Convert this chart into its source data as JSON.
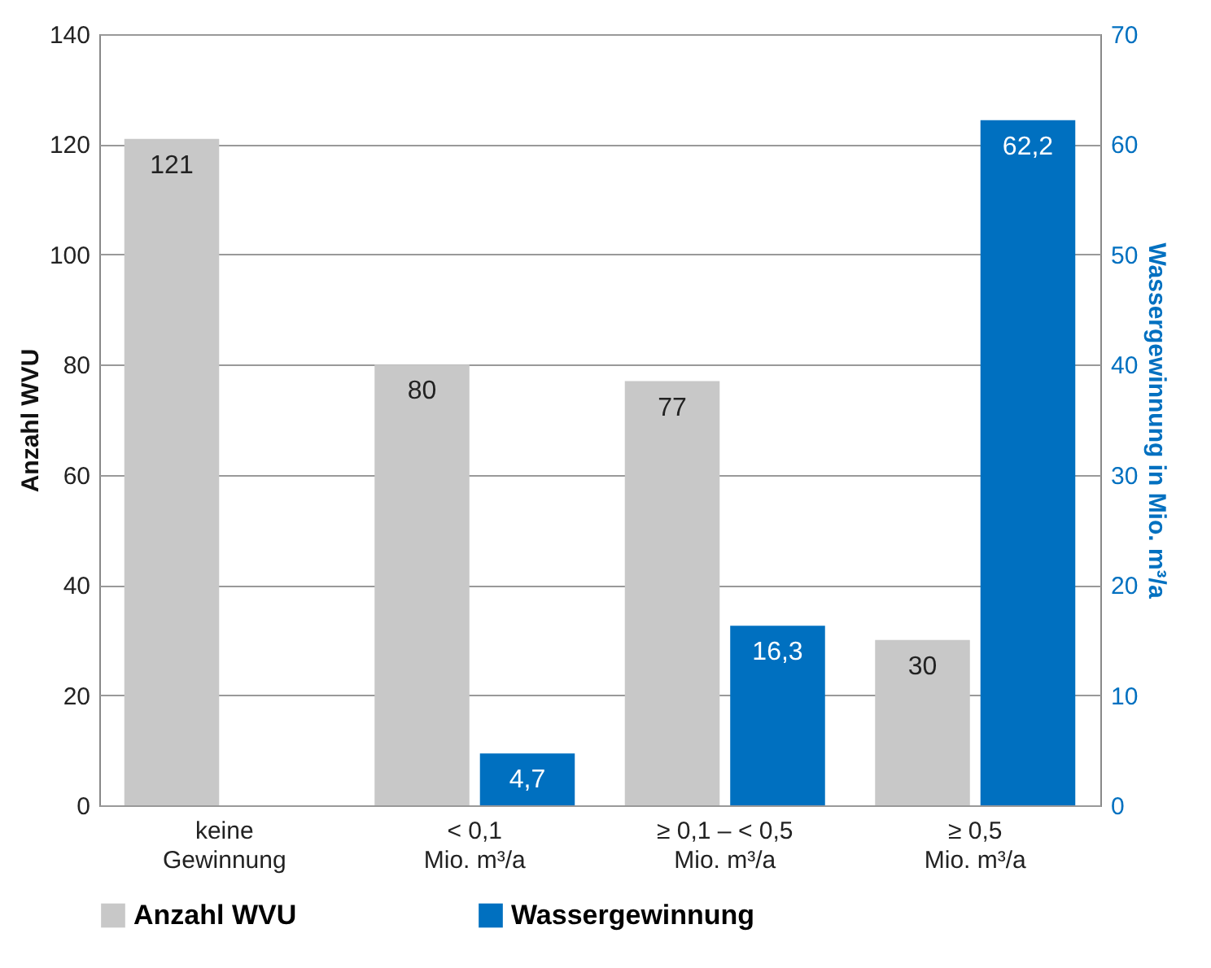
{
  "chart_data": {
    "type": "bar",
    "categories": [
      "keine\nGewinnung",
      "< 0,1\nMio. m³/a",
      "≥ 0,1 – < 0,5\nMio. m³/a",
      "≥ 0,5\nMio. m³/a"
    ],
    "series": [
      {
        "name": "Anzahl WVU",
        "color": "#c8c8c8",
        "values": [
          121,
          80,
          77,
          30
        ],
        "value_labels": [
          "121",
          "80",
          "77",
          "30"
        ]
      },
      {
        "name": "Wassergewinnung",
        "color": "#0070c0",
        "axis": "y2",
        "values": [
          null,
          4.7,
          16.3,
          62.2
        ],
        "value_labels": [
          null,
          "4,7",
          "16,3",
          "62,2"
        ]
      }
    ],
    "ylabel": "Anzahl WVU",
    "y2label": "Wassergewinnung in Mio. m³/a",
    "ylim": [
      0,
      140
    ],
    "yticks": [
      0,
      20,
      40,
      60,
      80,
      100,
      120,
      140
    ],
    "y2lim": [
      0,
      70
    ],
    "y2ticks": [
      0,
      10,
      20,
      30,
      40,
      50,
      60,
      70
    ],
    "grid": "y",
    "legend": "bottom"
  }
}
